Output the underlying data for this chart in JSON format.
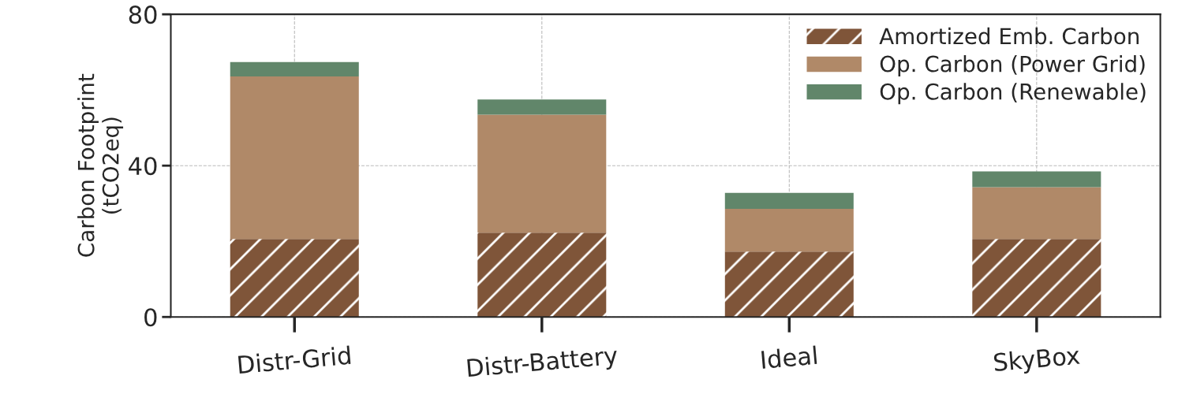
{
  "chart_data": {
    "type": "bar",
    "stacked": true,
    "ylabel": "Carbon Footprint\n(tCO2eq)",
    "categories": [
      "Distr-Grid",
      "Distr-Battery",
      "Ideal",
      "SkyBox"
    ],
    "series": [
      {
        "name": "Amortized Emb. Carbon",
        "color": "#7f5539",
        "values": [
          20.6,
          22.3,
          17.3,
          20.6
        ]
      },
      {
        "name": "Op. Carbon (Power Grid)",
        "color": "#b08968",
        "values": [
          43.0,
          31.2,
          11.3,
          13.7
        ]
      },
      {
        "name": "Op. Carbon (Renewable)",
        "color": "#61866a",
        "values": [
          3.8,
          4.0,
          4.2,
          4.2
        ]
      }
    ],
    "ylim": [
      0,
      80
    ],
    "yticks": [
      0,
      40,
      80
    ],
    "grid": true,
    "legend": "top right"
  }
}
